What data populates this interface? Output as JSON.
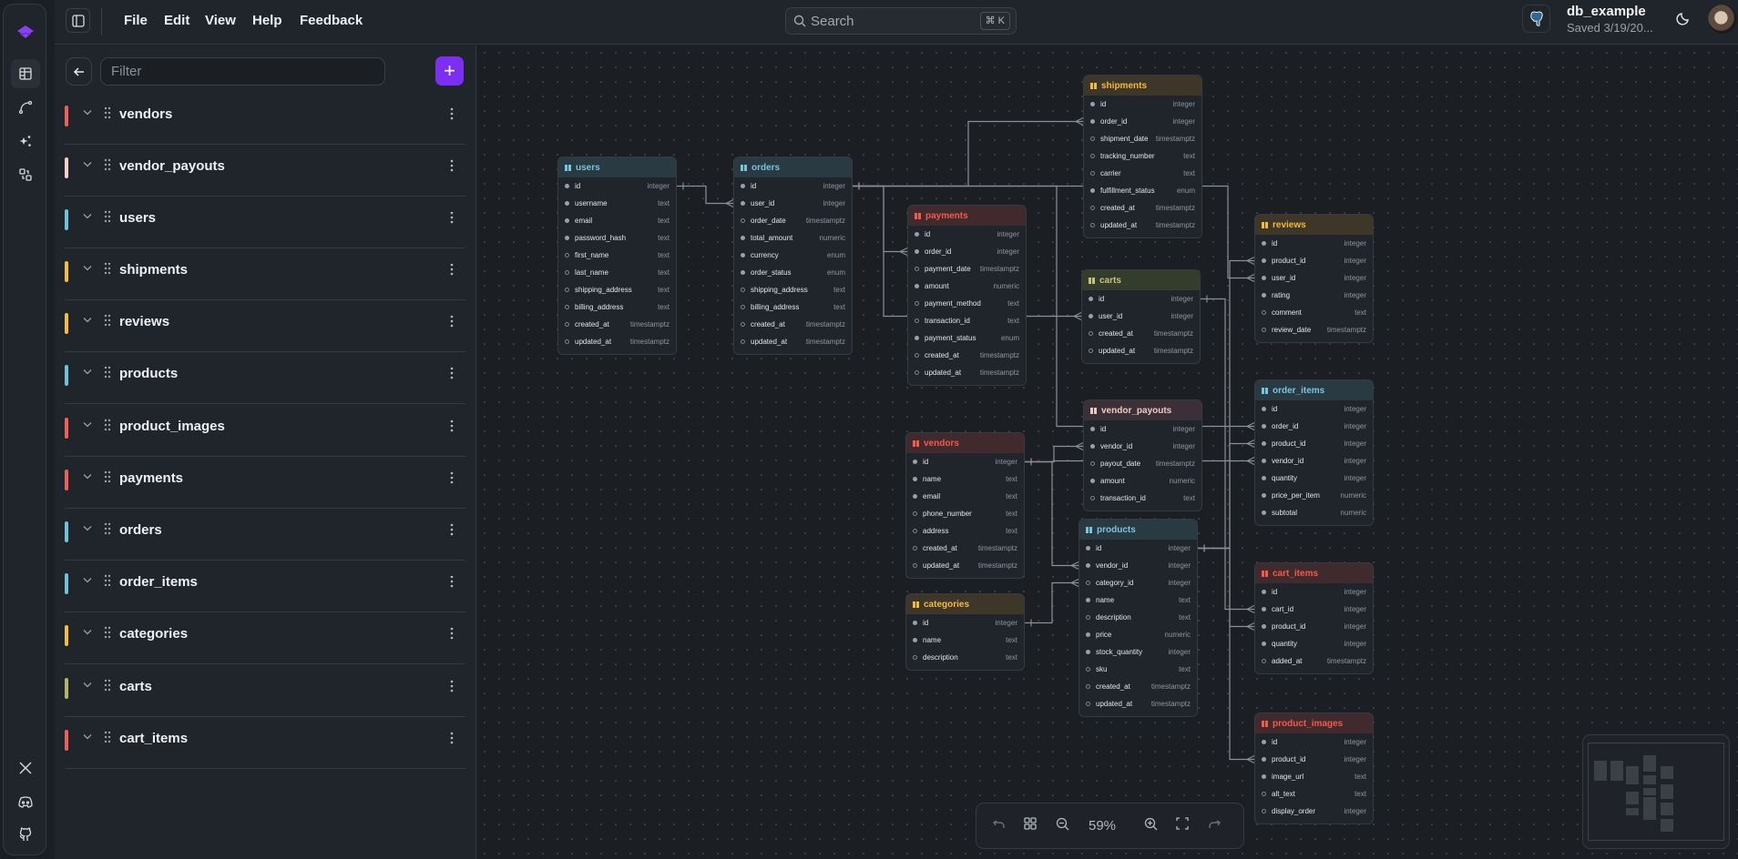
{
  "topbar": {
    "menu": [
      "File",
      "Edit",
      "View",
      "Help",
      "Feedback"
    ],
    "search_placeholder": "Search",
    "search_shortcut": "⌘ K",
    "db_name": "db_example",
    "db_saved": "Saved 3/19/20...",
    "db_engine_icon": "postgres-icon"
  },
  "sidebar": {
    "filter_placeholder": "Filter",
    "items": [
      {
        "label": "vendors",
        "color": "#f0605a"
      },
      {
        "label": "vendor_payouts",
        "color": "#f3cfc9"
      },
      {
        "label": "users",
        "color": "#6ec3d8"
      },
      {
        "label": "shipments",
        "color": "#f6bb42"
      },
      {
        "label": "reviews",
        "color": "#f6bb42"
      },
      {
        "label": "products",
        "color": "#6ec3d8"
      },
      {
        "label": "product_images",
        "color": "#f0605a"
      },
      {
        "label": "payments",
        "color": "#f0605a"
      },
      {
        "label": "orders",
        "color": "#6ec3d8"
      },
      {
        "label": "order_items",
        "color": "#6ec3d8"
      },
      {
        "label": "categories",
        "color": "#f6bb42"
      },
      {
        "label": "carts",
        "color": "#b5b46a"
      },
      {
        "label": "cart_items",
        "color": "#f0605a"
      }
    ]
  },
  "themes": {
    "blue": {
      "head": "#2a3a42",
      "text": "#7ac4dc"
    },
    "red": {
      "head": "#402a2e",
      "text": "#f25a4e"
    },
    "yellow": {
      "head": "#3d3629",
      "text": "#f5b942"
    },
    "olive": {
      "head": "#343c2c",
      "text": "#c9c27a"
    },
    "pink": {
      "head": "#3b3037",
      "text": "#f3c9c4"
    }
  },
  "tables": [
    {
      "name": "users",
      "theme": "blue",
      "columns": [
        [
          "id",
          "integer",
          1
        ],
        [
          "username",
          "text",
          1
        ],
        [
          "email",
          "text",
          1
        ],
        [
          "password_hash",
          "text",
          1
        ],
        [
          "first_name",
          "text",
          0
        ],
        [
          "last_name",
          "text",
          0
        ],
        [
          "shipping_address",
          "text",
          0
        ],
        [
          "billing_address",
          "text",
          0
        ],
        [
          "created_at",
          "timestamptz",
          0
        ],
        [
          "updated_at",
          "timestamptz",
          0
        ]
      ]
    },
    {
      "name": "orders",
      "theme": "blue",
      "columns": [
        [
          "id",
          "integer",
          1
        ],
        [
          "user_id",
          "integer",
          1
        ],
        [
          "order_date",
          "timestamptz",
          0
        ],
        [
          "total_amount",
          "numeric",
          1
        ],
        [
          "currency",
          "enum",
          1
        ],
        [
          "order_status",
          "enum",
          1
        ],
        [
          "shipping_address",
          "text",
          0
        ],
        [
          "billing_address",
          "text",
          0
        ],
        [
          "created_at",
          "timestamptz",
          0
        ],
        [
          "updated_at",
          "timestamptz",
          0
        ]
      ]
    },
    {
      "name": "payments",
      "theme": "red",
      "columns": [
        [
          "id",
          "integer",
          1
        ],
        [
          "order_id",
          "integer",
          1
        ],
        [
          "payment_date",
          "timestamptz",
          0
        ],
        [
          "amount",
          "numeric",
          1
        ],
        [
          "payment_method",
          "text",
          0
        ],
        [
          "transaction_id",
          "text",
          0
        ],
        [
          "payment_status",
          "enum",
          1
        ],
        [
          "created_at",
          "timestamptz",
          0
        ],
        [
          "updated_at",
          "timestamptz",
          0
        ]
      ]
    },
    {
      "name": "shipments",
      "theme": "yellow",
      "columns": [
        [
          "id",
          "integer",
          1
        ],
        [
          "order_id",
          "integer",
          1
        ],
        [
          "shipment_date",
          "timestamptz",
          0
        ],
        [
          "tracking_number",
          "text",
          0
        ],
        [
          "carrier",
          "text",
          0
        ],
        [
          "fulfillment_status",
          "enum",
          1
        ],
        [
          "created_at",
          "timestamptz",
          0
        ],
        [
          "updated_at",
          "timestamptz",
          0
        ]
      ]
    },
    {
      "name": "carts",
      "theme": "olive",
      "columns": [
        [
          "id",
          "integer",
          1
        ],
        [
          "user_id",
          "integer",
          1
        ],
        [
          "created_at",
          "timestamptz",
          0
        ],
        [
          "updated_at",
          "timestamptz",
          0
        ]
      ]
    },
    {
      "name": "reviews",
      "theme": "yellow",
      "columns": [
        [
          "id",
          "integer",
          1
        ],
        [
          "product_id",
          "integer",
          1
        ],
        [
          "user_id",
          "integer",
          1
        ],
        [
          "rating",
          "integer",
          1
        ],
        [
          "comment",
          "text",
          0
        ],
        [
          "review_date",
          "timestamptz",
          0
        ]
      ]
    },
    {
      "name": "order_items",
      "theme": "blue",
      "columns": [
        [
          "id",
          "integer",
          1
        ],
        [
          "order_id",
          "integer",
          1
        ],
        [
          "product_id",
          "integer",
          1
        ],
        [
          "vendor_id",
          "integer",
          1
        ],
        [
          "quantity",
          "integer",
          1
        ],
        [
          "price_per_item",
          "numeric",
          1
        ],
        [
          "subtotal",
          "numeric",
          1
        ]
      ]
    },
    {
      "name": "vendor_payouts",
      "theme": "pink",
      "columns": [
        [
          "id",
          "integer",
          1
        ],
        [
          "vendor_id",
          "integer",
          1
        ],
        [
          "payout_date",
          "timestamptz",
          0
        ],
        [
          "amount",
          "numeric",
          1
        ],
        [
          "transaction_id",
          "text",
          0
        ]
      ]
    },
    {
      "name": "vendors",
      "theme": "red",
      "columns": [
        [
          "id",
          "integer",
          1
        ],
        [
          "name",
          "text",
          1
        ],
        [
          "email",
          "text",
          1
        ],
        [
          "phone_number",
          "text",
          0
        ],
        [
          "address",
          "text",
          0
        ],
        [
          "created_at",
          "timestamptz",
          0
        ],
        [
          "updated_at",
          "timestamptz",
          0
        ]
      ]
    },
    {
      "name": "products",
      "theme": "blue",
      "columns": [
        [
          "id",
          "integer",
          1
        ],
        [
          "vendor_id",
          "integer",
          1
        ],
        [
          "category_id",
          "integer",
          0
        ],
        [
          "name",
          "text",
          1
        ],
        [
          "description",
          "text",
          0
        ],
        [
          "price",
          "numeric",
          1
        ],
        [
          "stock_quantity",
          "integer",
          1
        ],
        [
          "sku",
          "text",
          0
        ],
        [
          "created_at",
          "timestamptz",
          0
        ],
        [
          "updated_at",
          "timestamptz",
          0
        ]
      ]
    },
    {
      "name": "categories",
      "theme": "yellow",
      "columns": [
        [
          "id",
          "integer",
          1
        ],
        [
          "name",
          "text",
          1
        ],
        [
          "description",
          "text",
          0
        ]
      ]
    },
    {
      "name": "cart_items",
      "theme": "red",
      "columns": [
        [
          "id",
          "integer",
          1
        ],
        [
          "cart_id",
          "integer",
          1
        ],
        [
          "product_id",
          "integer",
          1
        ],
        [
          "quantity",
          "integer",
          1
        ],
        [
          "added_at",
          "timestamptz",
          0
        ]
      ]
    },
    {
      "name": "product_images",
      "theme": "red",
      "columns": [
        [
          "id",
          "integer",
          1
        ],
        [
          "product_id",
          "integer",
          1
        ],
        [
          "image_url",
          "text",
          1
        ],
        [
          "alt_text",
          "text",
          0
        ],
        [
          "display_order",
          "integer",
          0
        ]
      ]
    }
  ],
  "relationships": [
    [
      "users.id",
      "orders.user_id"
    ],
    [
      "orders.id",
      "payments.order_id"
    ],
    [
      "orders.id",
      "shipments.order_id"
    ],
    [
      "orders.id",
      "order_items.order_id"
    ],
    [
      "users.id",
      "carts.user_id"
    ],
    [
      "users.id",
      "reviews.user_id"
    ],
    [
      "products.id",
      "reviews.product_id"
    ],
    [
      "products.id",
      "order_items.product_id"
    ],
    [
      "products.id",
      "cart_items.product_id"
    ],
    [
      "products.id",
      "product_images.product_id"
    ],
    [
      "carts.id",
      "cart_items.cart_id"
    ],
    [
      "vendors.id",
      "vendor_payouts.vendor_id"
    ],
    [
      "vendors.id",
      "products.vendor_id"
    ],
    [
      "vendors.id",
      "order_items.vendor_id"
    ],
    [
      "categories.id",
      "products.category_id"
    ]
  ],
  "zoom": {
    "level": "59%"
  }
}
